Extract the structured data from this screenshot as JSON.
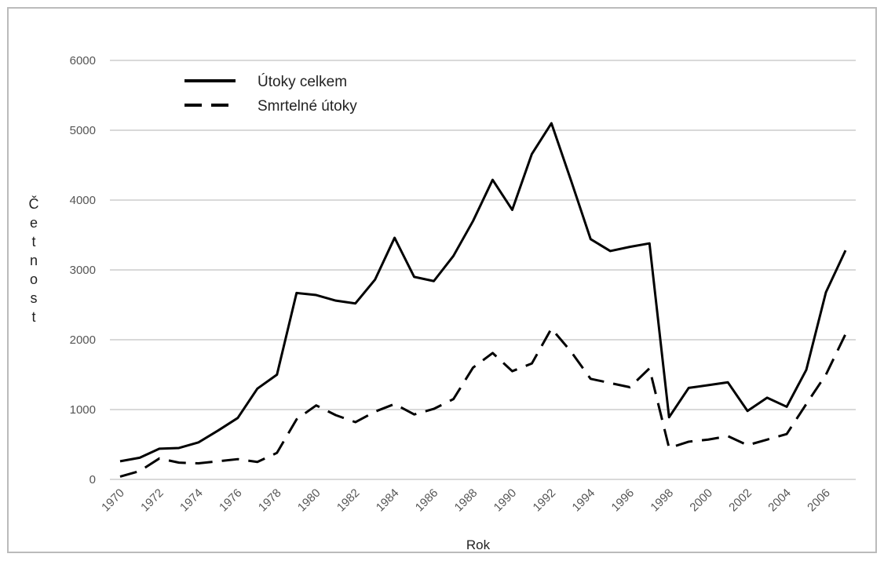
{
  "chart_data": {
    "type": "line",
    "x_label": "Rok",
    "y_label": "Četnost",
    "x": [
      1970,
      1971,
      1972,
      1973,
      1974,
      1975,
      1976,
      1977,
      1978,
      1979,
      1980,
      1981,
      1982,
      1983,
      1984,
      1985,
      1986,
      1987,
      1988,
      1989,
      1990,
      1991,
      1992,
      1993,
      1994,
      1995,
      1996,
      1997,
      1998,
      1999,
      2000,
      2001,
      2002,
      2003,
      2004,
      2005,
      2006,
      2007
    ],
    "series": [
      {
        "name": "Útoky celkem",
        "color": "#000000",
        "linestyle": "solid",
        "values": [
          260,
          310,
          440,
          450,
          530,
          700,
          880,
          1300,
          1500,
          2670,
          2640,
          2560,
          2520,
          2860,
          3460,
          2900,
          2840,
          3200,
          3700,
          4290,
          3860,
          4660,
          5100,
          4280,
          3440,
          3270,
          3330,
          3380,
          890,
          1310,
          1350,
          1390,
          980,
          1170,
          1040,
          1570,
          2680,
          3280
        ]
      },
      {
        "name": "Smrtelné útoky",
        "color": "#000000",
        "linestyle": "dashed",
        "values": [
          40,
          120,
          300,
          240,
          230,
          260,
          290,
          250,
          380,
          860,
          1060,
          920,
          820,
          970,
          1080,
          930,
          1010,
          1150,
          1600,
          1810,
          1550,
          1660,
          2160,
          1830,
          1440,
          1380,
          1320,
          1590,
          450,
          540,
          570,
          620,
          490,
          570,
          650,
          1080,
          1500,
          2080
        ]
      }
    ],
    "xlim": [
      1970,
      2007
    ],
    "xticks": [
      1970,
      1972,
      1974,
      1976,
      1978,
      1980,
      1982,
      1984,
      1986,
      1988,
      1990,
      1992,
      1994,
      1996,
      1998,
      2000,
      2002,
      2004,
      2006
    ],
    "ylim": [
      0,
      6000
    ],
    "yticks": [
      0,
      1000,
      2000,
      3000,
      4000,
      5000,
      6000
    ],
    "grid": true,
    "legend": "upper left"
  }
}
